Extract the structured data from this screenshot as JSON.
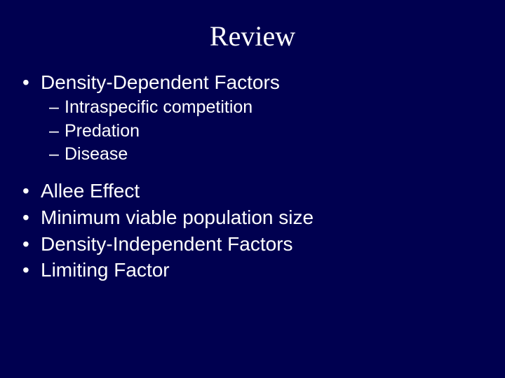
{
  "slide": {
    "background_color": "#000050",
    "text_color": "#ffffff",
    "title_font_family": "Times New Roman",
    "body_font_family": "Arial",
    "title_fontsize": 40,
    "level1_fontsize": 28,
    "level2_fontsize": 25,
    "title": "Review",
    "bullets": {
      "b1": {
        "marker": "•",
        "text": "Density-Dependent Factors"
      },
      "b1_1": {
        "marker": "–",
        "text": "Intraspecific competition"
      },
      "b1_2": {
        "marker": "–",
        "text": "Predation"
      },
      "b1_3": {
        "marker": "–",
        "text": "Disease"
      },
      "b2": {
        "marker": "•",
        "text": "Allee Effect"
      },
      "b3": {
        "marker": "•",
        "text": "Minimum viable population size"
      },
      "b4": {
        "marker": "•",
        "text": "Density-Independent Factors"
      },
      "b5": {
        "marker": "•",
        "text": "Limiting Factor"
      }
    }
  }
}
